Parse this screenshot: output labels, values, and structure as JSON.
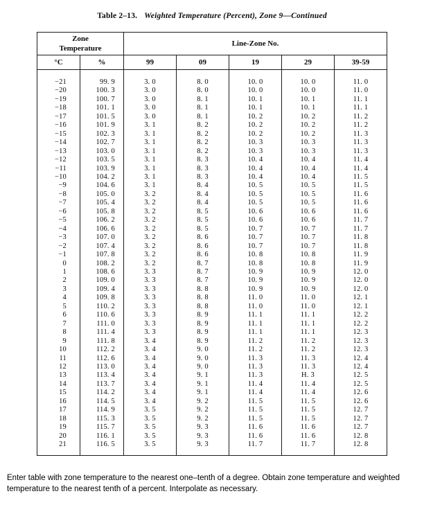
{
  "page": {
    "title_label": "Table 2–13.",
    "title_caption": "Weighted Temperature (Percent), Zone 9—Continued",
    "footer_text": "Enter table with zone temperature to the nearest one–tenth of a degree. Obtain zone temperature and weighted temperature to the nearest tenth of a percent. Interpolate as necessary."
  },
  "table": {
    "group_header_zone": "Zone\nTemperature",
    "group_header_linezone": "Line-Zone No.",
    "columns": [
      "°C",
      "%",
      "99",
      "09",
      "19",
      "29",
      "39-59"
    ],
    "rows": [
      [
        "−21",
        "99. 9",
        "3. 0",
        "8. 0",
        "10. 0",
        "10. 0",
        "11. 0"
      ],
      [
        "−20",
        "100. 3",
        "3. 0",
        "8. 0",
        "10. 0",
        "10. 0",
        "11. 0"
      ],
      [
        "−19",
        "100. 7",
        "3. 0",
        "8. 1",
        "10. 1",
        "10. 1",
        "11. 1"
      ],
      [
        "−18",
        "101. 1",
        "3. 0",
        "8. 1",
        "10. 1",
        "10. 1",
        "11. 1"
      ],
      [
        "−17",
        "101. 5",
        "3. 0",
        "8. 1",
        "10. 2",
        "10. 2",
        "11. 2"
      ],
      [
        "−16",
        "101. 9",
        "3. 1",
        "8. 2",
        "10. 2",
        "10. 2",
        "11. 2"
      ],
      [
        "−15",
        "102. 3",
        "3. 1",
        "8. 2",
        "10. 2",
        "10. 2",
        "11. 3"
      ],
      [
        "−14",
        "102. 7",
        "3. 1",
        "8. 2",
        "10. 3",
        "10. 3",
        "11. 3"
      ],
      [
        "−13",
        "103. 0",
        "3. 1",
        "8. 2",
        "10. 3",
        "10. 3",
        "11. 3"
      ],
      [
        "−12",
        "103. 5",
        "3. 1",
        "8. 3",
        "10. 4",
        "10. 4",
        "11. 4"
      ],
      [
        "−11",
        "103. 9",
        "3. 1",
        "8. 3",
        "10. 4",
        "10. 4",
        "11. 4"
      ],
      [
        "−10",
        "104. 2",
        "3. 1",
        "8. 3",
        "10. 4",
        "10. 4",
        "11. 5"
      ],
      [
        "−9",
        "104. 6",
        "3. 1",
        "8. 4",
        "10. 5",
        "10. 5",
        "11. 5"
      ],
      [
        "−8",
        "105. 0",
        "3. 2",
        "8. 4",
        "10. 5",
        "10. 5",
        "11. 6"
      ],
      [
        "−7",
        "105. 4",
        "3. 2",
        "8. 4",
        "10. 5",
        "10. 5",
        "11. 6"
      ],
      [
        "−6",
        "105. 8",
        "3. 2",
        "8. 5",
        "10. 6",
        "10. 6",
        "11. 6"
      ],
      [
        "−5",
        "106. 2",
        "3. 2",
        "8. 5",
        "10. 6",
        "10. 6",
        "11. 7"
      ],
      [
        "−4",
        "106. 6",
        "3. 2",
        "8. 5",
        "10. 7",
        "10. 7",
        "11. 7"
      ],
      [
        "−3",
        "107. 0",
        "3. 2",
        "8. 6",
        "10. 7",
        "10. 7",
        "11. 8"
      ],
      [
        "−2",
        "107. 4",
        "3. 2",
        "8. 6",
        "10. 7",
        "10. 7",
        "11. 8"
      ],
      [
        "−1",
        "107. 8",
        "3. 2",
        "8. 6",
        "10. 8",
        "10. 8",
        "11. 9"
      ],
      [
        "0",
        "108. 2",
        "3. 2",
        "8. 7",
        "10. 8",
        "10. 8",
        "11. 9"
      ],
      [
        "1",
        "108. 6",
        "3. 3",
        "8. 7",
        "10. 9",
        "10. 9",
        "12. 0"
      ],
      [
        "2",
        "109. 0",
        "3. 3",
        "8. 7",
        "10. 9",
        "10. 9",
        "12. 0"
      ],
      [
        "3",
        "109. 4",
        "3. 3",
        "8. 8",
        "10. 9",
        "10. 9",
        "12. 0"
      ],
      [
        "4",
        "109. 8",
        "3. 3",
        "8. 8",
        "11. 0",
        "11. 0",
        "12. 1"
      ],
      [
        "5",
        "110. 2",
        "3. 3",
        "8. 8",
        "11. 0",
        "11. 0",
        "12. 1"
      ],
      [
        "6",
        "110. 6",
        "3. 3",
        "8. 9",
        "11. 1",
        "11. 1",
        "12. 2"
      ],
      [
        "7",
        "111. 0",
        "3. 3",
        "8. 9",
        "11. 1",
        "11. 1",
        "12. 2"
      ],
      [
        "8",
        "111. 4",
        "3. 3",
        "8. 9",
        "11. 1",
        "11. 1",
        "12. 3"
      ],
      [
        "9",
        "111. 8",
        "3. 4",
        "8. 9",
        "11. 2",
        "11. 2",
        "12. 3"
      ],
      [
        "10",
        "112. 2",
        "3. 4",
        "9. 0",
        "11. 2",
        "11. 2",
        "12. 3"
      ],
      [
        "11",
        "112. 6",
        "3. 4",
        "9. 0",
        "11. 3",
        "11. 3",
        "12. 4"
      ],
      [
        "12",
        "113. 0",
        "3. 4",
        "9. 0",
        "11. 3",
        "11. 3",
        "12. 4"
      ],
      [
        "13",
        "113. 4",
        "3. 4",
        "9. 1",
        "11. 3",
        "H. 3",
        "12. 5"
      ],
      [
        "14",
        "113. 7",
        "3. 4",
        "9. 1",
        "11. 4",
        "11. 4",
        "12. 5"
      ],
      [
        "15",
        "114. 2",
        "3. 4",
        "9. 1",
        "11. 4",
        "11. 4",
        "12. 6"
      ],
      [
        "16",
        "114. 5",
        "3. 4",
        "9. 2",
        "11. 5",
        "11. 5",
        "12. 6"
      ],
      [
        "17",
        "114. 9",
        "3. 5",
        "9. 2",
        "11. 5",
        "11. 5",
        "12. 7"
      ],
      [
        "18",
        "115. 3",
        "3. 5",
        "9. 2",
        "11. 5",
        "11. 5",
        "12. 7"
      ],
      [
        "19",
        "115. 7",
        "3. 5",
        "9. 3",
        "11. 6",
        "11. 6",
        "12. 7"
      ],
      [
        "20",
        "116. 1",
        "3. 5",
        "9. 3",
        "11. 6",
        "11. 6",
        "12. 8"
      ],
      [
        "21",
        "116. 5",
        "3. 5",
        "9. 3",
        "11. 7",
        "11. 7",
        "12. 8"
      ]
    ]
  }
}
